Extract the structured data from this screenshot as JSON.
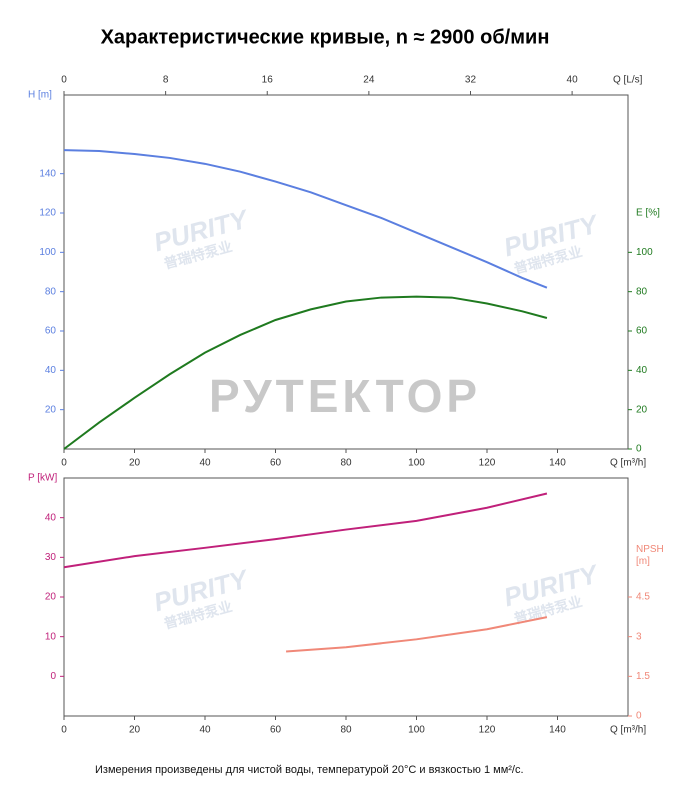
{
  "title": "Характеристические кривые, n ≈ 2900 об/мин",
  "note": "Измерения произведены для чистой воды, температурой 20°C и вязкостью 1 мм²/с.",
  "watermarks": {
    "main": "РУТЕКТОР",
    "logo": "PURITY",
    "logo_sub": "普瑞特泵业"
  },
  "chart_data": [
    {
      "type": "line",
      "xlabel": "Q [m³/h]",
      "x2label": "Q [L/s]",
      "ylabel": "H [m]",
      "y2label": "E [%]",
      "xlim": [
        0,
        160
      ],
      "xticks": [
        0,
        20,
        40,
        60,
        80,
        100,
        120,
        140
      ],
      "x2lim": [
        0,
        44.4
      ],
      "x2ticks": [
        0,
        8,
        16,
        24,
        32,
        40
      ],
      "ylim": [
        0,
        180
      ],
      "yticks": [
        20,
        40,
        60,
        80,
        100,
        120,
        140
      ],
      "y2lim": [
        0,
        180
      ],
      "y2ticks": [
        0,
        20,
        40,
        60,
        80,
        100
      ],
      "series": [
        {
          "color": "#5b7fe0",
          "axis": "y",
          "x": [
            0,
            10,
            20,
            30,
            40,
            50,
            60,
            70,
            80,
            90,
            100,
            110,
            120,
            130,
            137
          ],
          "values": [
            152,
            151.5,
            150,
            148,
            145,
            141,
            136,
            130.5,
            124,
            117.5,
            110,
            102.5,
            95,
            87,
            82
          ]
        },
        {
          "color": "#1f7a1f",
          "axis": "y2",
          "x": [
            0,
            10,
            20,
            30,
            40,
            50,
            60,
            70,
            80,
            90,
            100,
            110,
            120,
            130,
            137
          ],
          "values": [
            0,
            13.5,
            26,
            38,
            49,
            58,
            65.6,
            71,
            75,
            77,
            77.5,
            77,
            74,
            70,
            66.6
          ]
        }
      ]
    },
    {
      "type": "line",
      "xlabel": "Q [m³/h]",
      "ylabel": "P [kW]",
      "y2label": "NPSH [m]",
      "xlim": [
        0,
        160
      ],
      "xticks": [
        0,
        20,
        40,
        60,
        80,
        100,
        120,
        140
      ],
      "ylim": [
        -10,
        50
      ],
      "yticks": [
        0,
        10,
        20,
        30,
        40
      ],
      "y2lim": [
        0,
        9
      ],
      "y2ticks": [
        0,
        1.5,
        3,
        4.5
      ],
      "series": [
        {
          "color": "#c0207a",
          "axis": "y",
          "x": [
            0,
            20,
            40,
            60,
            80,
            100,
            120,
            137
          ],
          "values": [
            27.5,
            30.3,
            32.4,
            34.6,
            37,
            39.2,
            42.5,
            46.1
          ]
        },
        {
          "color": "#f08878",
          "axis": "y2",
          "x": [
            63,
            80,
            100,
            120,
            137
          ],
          "values": [
            2.44,
            2.6,
            2.9,
            3.28,
            3.74
          ]
        }
      ]
    }
  ]
}
